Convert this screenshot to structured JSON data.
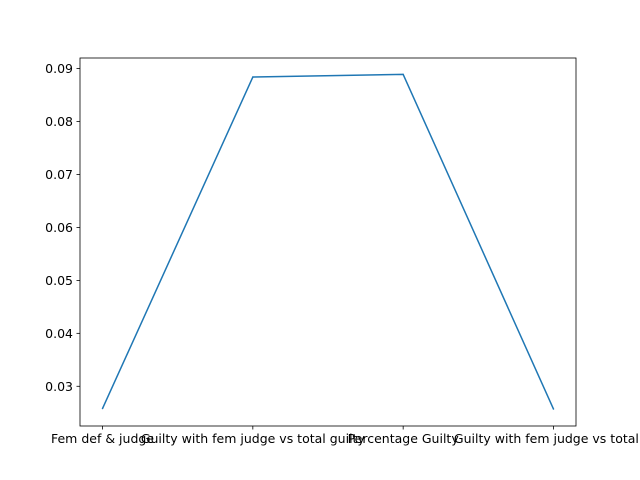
{
  "chart_data": {
    "type": "line",
    "title": "",
    "xlabel": "",
    "ylabel": "",
    "categories": [
      "Fem def & judge",
      "Guilty with fem judge vs total guilty",
      "Percentage Guilty",
      "Guilty with fem judge vs total w"
    ],
    "series": [
      {
        "values": [
          0.0258,
          0.0884,
          0.0889,
          0.0257
        ],
        "color": "#1f77b4"
      }
    ],
    "ylim": [
      0.0225,
      0.092
    ],
    "yticks": [
      0.03,
      0.04,
      0.05,
      0.06,
      0.07,
      0.08,
      0.09
    ],
    "ytick_labels": [
      "0.03",
      "0.04",
      "0.05",
      "0.06",
      "0.07",
      "0.08",
      "0.09"
    ],
    "grid": false,
    "legend": "none"
  }
}
